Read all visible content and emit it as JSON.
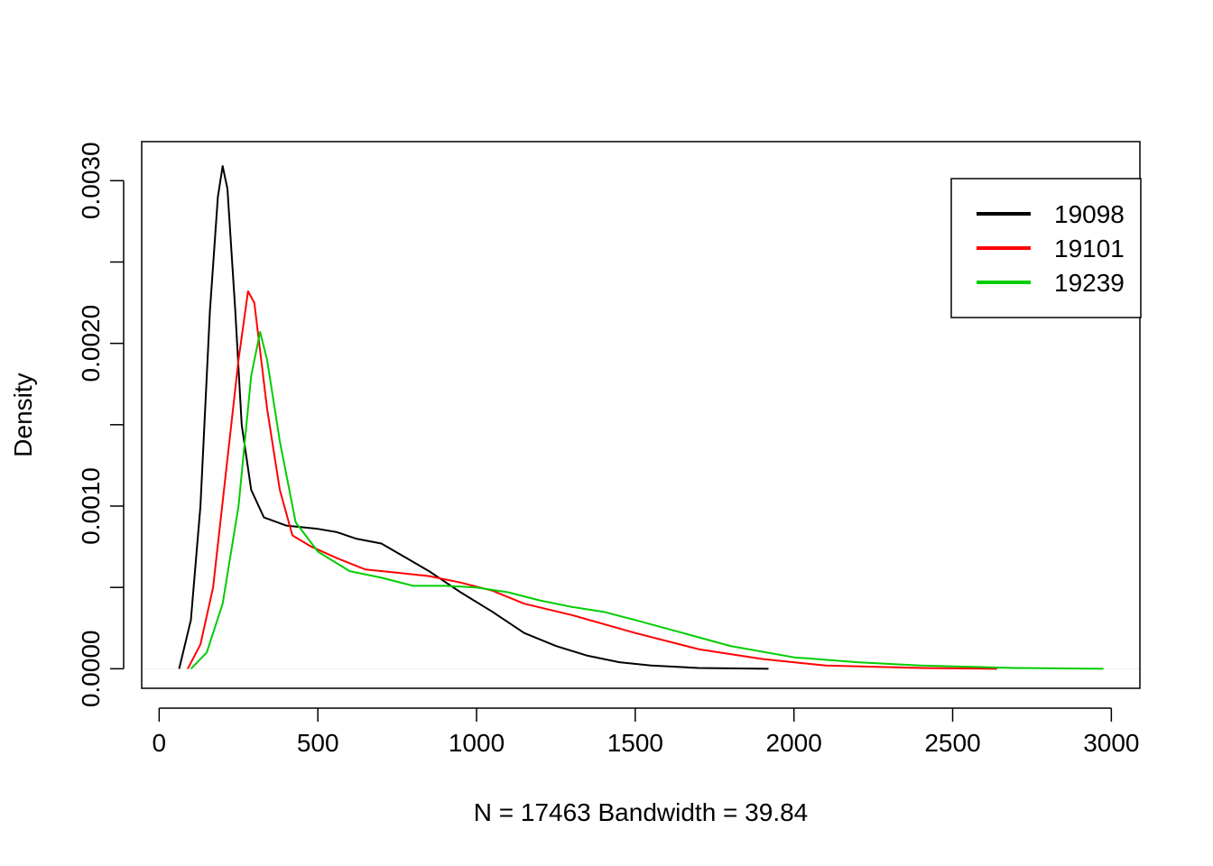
{
  "chart_data": {
    "type": "line",
    "title": "",
    "xlabel": "N = 17463   Bandwidth = 39.84",
    "ylabel": "Density",
    "xlim": [
      -55,
      3090
    ],
    "ylim": [
      -0.00012,
      0.00324
    ],
    "x_ticks": [
      0,
      500,
      1000,
      1500,
      2000,
      2500,
      3000
    ],
    "x_tick_labels": [
      "0",
      "500",
      "1000",
      "1500",
      "2000",
      "2500",
      "3000"
    ],
    "y_ticks": [
      0.0,
      0.0005,
      0.001,
      0.0015,
      0.002,
      0.0025,
      0.003
    ],
    "y_tick_labels": [
      "0.0000",
      "",
      "0.0010",
      "",
      "0.0020",
      "",
      "0.0030"
    ],
    "grid": false,
    "legend": {
      "position": "top-right"
    },
    "series": [
      {
        "name": "19098",
        "color": "#000000",
        "points": [
          [
            63,
            0.0
          ],
          [
            100,
            0.0003
          ],
          [
            130,
            0.001
          ],
          [
            160,
            0.0022
          ],
          [
            185,
            0.0029
          ],
          [
            200,
            0.00309
          ],
          [
            215,
            0.00295
          ],
          [
            240,
            0.0022
          ],
          [
            260,
            0.0015
          ],
          [
            290,
            0.0011
          ],
          [
            330,
            0.00093
          ],
          [
            400,
            0.00088
          ],
          [
            500,
            0.00086
          ],
          [
            560,
            0.00084
          ],
          [
            620,
            0.0008
          ],
          [
            700,
            0.00077
          ],
          [
            780,
            0.00068
          ],
          [
            850,
            0.0006
          ],
          [
            950,
            0.00047
          ],
          [
            1050,
            0.00035
          ],
          [
            1150,
            0.00022
          ],
          [
            1250,
            0.00014
          ],
          [
            1350,
            8e-05
          ],
          [
            1450,
            4e-05
          ],
          [
            1550,
            2e-05
          ],
          [
            1700,
            5e-06
          ],
          [
            1920,
            0.0
          ]
        ]
      },
      {
        "name": "19101",
        "color": "#ff0000",
        "points": [
          [
            90,
            0.0
          ],
          [
            130,
            0.00015
          ],
          [
            170,
            0.0005
          ],
          [
            210,
            0.0012
          ],
          [
            250,
            0.0019
          ],
          [
            280,
            0.00232
          ],
          [
            300,
            0.00225
          ],
          [
            340,
            0.0016
          ],
          [
            380,
            0.0011
          ],
          [
            420,
            0.00082
          ],
          [
            480,
            0.00075
          ],
          [
            560,
            0.00068
          ],
          [
            650,
            0.00061
          ],
          [
            750,
            0.00059
          ],
          [
            850,
            0.00057
          ],
          [
            950,
            0.00053
          ],
          [
            1050,
            0.00048
          ],
          [
            1150,
            0.0004
          ],
          [
            1300,
            0.00033
          ],
          [
            1500,
            0.00022
          ],
          [
            1700,
            0.00012
          ],
          [
            1900,
            6e-05
          ],
          [
            2100,
            2e-05
          ],
          [
            2400,
            5e-06
          ],
          [
            2640,
            0.0
          ]
        ]
      },
      {
        "name": "19239",
        "color": "#00cd00",
        "points": [
          [
            100,
            0.0
          ],
          [
            150,
            0.0001
          ],
          [
            200,
            0.0004
          ],
          [
            250,
            0.001
          ],
          [
            290,
            0.0018
          ],
          [
            318,
            0.00207
          ],
          [
            340,
            0.0019
          ],
          [
            380,
            0.0014
          ],
          [
            430,
            0.0009
          ],
          [
            500,
            0.00072
          ],
          [
            600,
            0.0006
          ],
          [
            700,
            0.00056
          ],
          [
            800,
            0.00051
          ],
          [
            900,
            0.00051
          ],
          [
            1000,
            0.0005
          ],
          [
            1100,
            0.00047
          ],
          [
            1200,
            0.00042
          ],
          [
            1300,
            0.00038
          ],
          [
            1400,
            0.00035
          ],
          [
            1500,
            0.0003
          ],
          [
            1650,
            0.00022
          ],
          [
            1800,
            0.00014
          ],
          [
            2000,
            7e-05
          ],
          [
            2200,
            4e-05
          ],
          [
            2400,
            2e-05
          ],
          [
            2700,
            5e-06
          ],
          [
            2975,
            0.0
          ]
        ]
      }
    ]
  }
}
